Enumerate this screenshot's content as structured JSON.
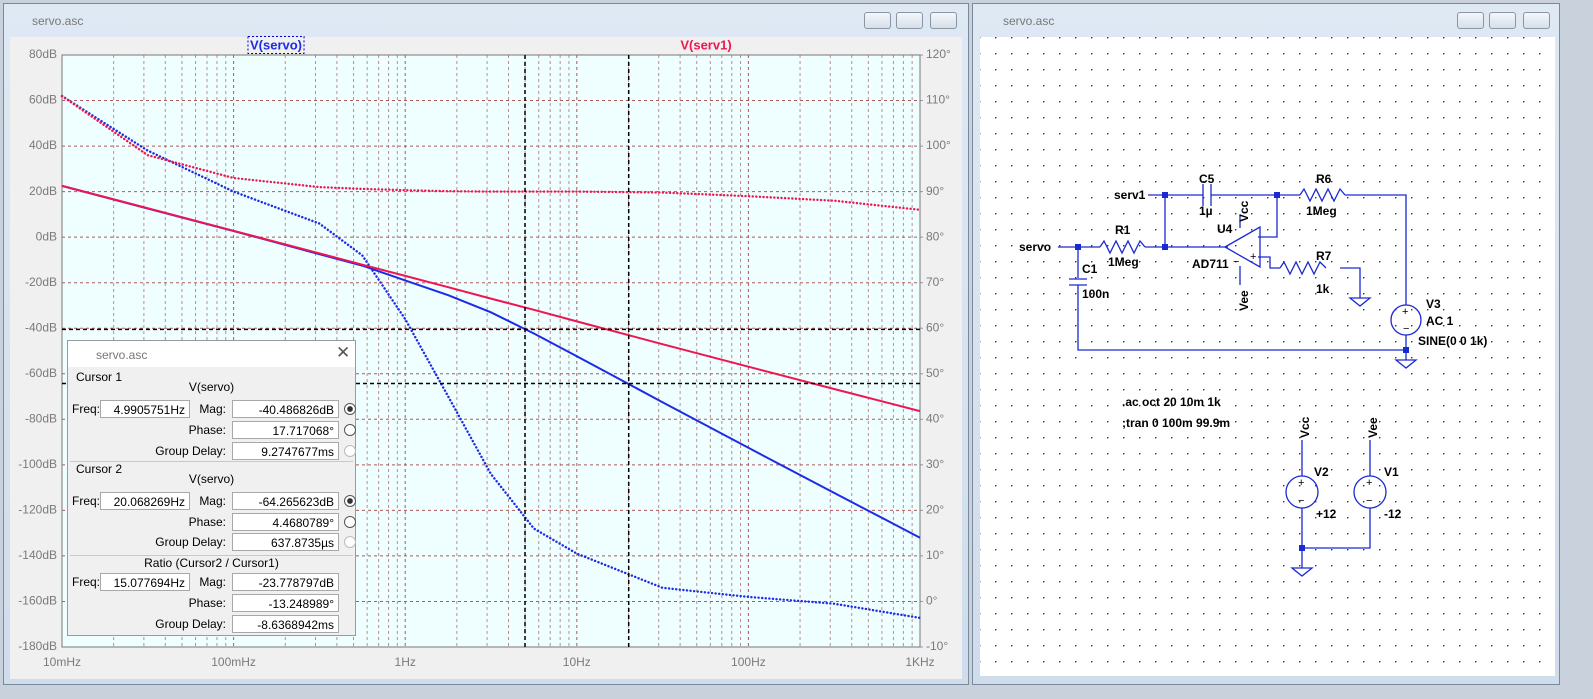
{
  "plot_window": {
    "title": "servo.asc"
  },
  "chart_data": {
    "type": "line",
    "xscale": "log",
    "x": [
      0.01,
      0.0316,
      0.1,
      0.316,
      0.562,
      1,
      1.78,
      3.16,
      5.62,
      10,
      31.6,
      100,
      316,
      1000
    ],
    "series": [
      {
        "name": "V(servo)",
        "color": "#1c2ce6",
        "values": [
          22.5,
          12.6,
          2.7,
          -7.5,
          -12.5,
          -19,
          -25.5,
          -33,
          -42.3,
          -52.3,
          -72.5,
          -92.5,
          -112.3,
          -132
        ]
      },
      {
        "color": "#1c2ce6",
        "axis": "y2",
        "style": "dotted",
        "values": [
          111,
          99,
          90,
          83,
          76,
          62,
          45,
          28,
          16,
          10.5,
          3,
          1,
          -0.5,
          -3.6
        ]
      },
      {
        "name": "V(serv1)",
        "color": "#ee1650",
        "values": [
          22.5,
          12.7,
          2.8,
          -7.1,
          -12.1,
          -17,
          -22,
          -27,
          -31.9,
          -37,
          -47,
          -56.9,
          -66.7,
          -76.4
        ]
      },
      {
        "color": "#ee1650",
        "axis": "y2",
        "style": "dotted",
        "values": [
          111,
          98,
          93,
          91,
          90.6,
          90.3,
          90.1,
          90,
          90,
          90,
          89.8,
          89,
          88,
          86
        ]
      }
    ],
    "xlim": [
      0.01,
      1000
    ],
    "xticks": [
      {
        "value": 0.01,
        "label": "10mHz"
      },
      {
        "value": 0.1,
        "label": "100mHz"
      },
      {
        "value": 1,
        "label": "1Hz"
      },
      {
        "value": 10,
        "label": "10Hz"
      },
      {
        "value": 100,
        "label": "100Hz"
      },
      {
        "value": 1000,
        "label": "1KHz"
      }
    ],
    "ylim": [
      -180,
      80
    ],
    "yticks": [
      {
        "value": -180,
        "label": "-180dB"
      },
      {
        "value": -160,
        "label": "-160dB"
      },
      {
        "value": -140,
        "label": "-140dB"
      },
      {
        "value": -120,
        "label": "-120dB"
      },
      {
        "value": -100,
        "label": "-100dB"
      },
      {
        "value": -80,
        "label": "-80dB"
      },
      {
        "value": -60,
        "label": "-60dB"
      },
      {
        "value": -40,
        "label": "-40dB"
      },
      {
        "value": -20,
        "label": "-20dB"
      },
      {
        "value": 0,
        "label": "0dB"
      },
      {
        "value": 20,
        "label": "20dB"
      },
      {
        "value": 40,
        "label": "40dB"
      },
      {
        "value": 60,
        "label": "60dB"
      },
      {
        "value": 80,
        "label": "80dB"
      }
    ],
    "y2lim": [
      -10,
      120
    ],
    "y2ticks": [
      {
        "value": -10,
        "label": "-10°"
      },
      {
        "value": 0,
        "label": "0°"
      },
      {
        "value": 10,
        "label": "10°"
      },
      {
        "value": 20,
        "label": "20°"
      },
      {
        "value": 30,
        "label": "30°"
      },
      {
        "value": 40,
        "label": "40°"
      },
      {
        "value": 50,
        "label": "50°"
      },
      {
        "value": 60,
        "label": "60°"
      },
      {
        "value": 70,
        "label": "70°"
      },
      {
        "value": 80,
        "label": "80°"
      },
      {
        "value": 90,
        "label": "90°"
      },
      {
        "value": 100,
        "label": "100°"
      },
      {
        "value": 110,
        "label": "110°"
      },
      {
        "value": 120,
        "label": "120°"
      }
    ],
    "grid": true,
    "cursors": [
      {
        "x": 4.9905751,
        "y": -40.486826
      },
      {
        "x": 20.068269,
        "y": -64.265623
      }
    ]
  },
  "cursor_dialog": {
    "title": "servo.asc",
    "sections": [
      {
        "heading": "Cursor 1",
        "trace": "V(servo)",
        "rows": [
          [
            {
              "label": "Freq:",
              "value": "4.9905751Hz"
            },
            {
              "label": "Mag:",
              "value": "-40.486826dB"
            }
          ],
          [
            {
              "label": "Phase:",
              "value": "17.717068°"
            }
          ],
          [
            {
              "label": "Group Delay:",
              "value": "9.2747677ms"
            }
          ]
        ]
      },
      {
        "heading": "Cursor 2",
        "trace": "V(servo)",
        "rows": [
          [
            {
              "label": "Freq:",
              "value": "20.068269Hz"
            },
            {
              "label": "Mag:",
              "value": "-64.265623dB"
            }
          ],
          [
            {
              "label": "Phase:",
              "value": "4.4680789°"
            }
          ],
          [
            {
              "label": "Group Delay:",
              "value": "637.8735µs"
            }
          ]
        ]
      },
      {
        "heading": "Ratio (Cursor2 / Cursor1)",
        "rows": [
          [
            {
              "label": "Freq:",
              "value": "15.077694Hz"
            },
            {
              "label": "Mag:",
              "value": "-23.778797dB"
            }
          ],
          [
            {
              "label": "Phase:",
              "value": "-13.248989°"
            }
          ],
          [
            {
              "label": "Group Delay:",
              "value": "-8.6368942ms"
            }
          ]
        ]
      }
    ]
  },
  "schematic_window": {
    "title": "servo.asc",
    "labels": [
      "serv1",
      "C5",
      "1µ",
      "R6",
      "1Meg",
      "Vcc",
      "U4",
      "servo",
      "R1",
      "1Meg",
      "AD711",
      "C1",
      "100n",
      "Vee",
      "R7",
      "1k",
      "V3",
      "AC 1",
      "SINE(0 0 1k)",
      ".ac oct 20 10m 1k",
      ";tran 0 100m 99.9m",
      "Vcc",
      "Vee",
      "V2",
      "+12",
      "V1",
      "-12"
    ]
  }
}
